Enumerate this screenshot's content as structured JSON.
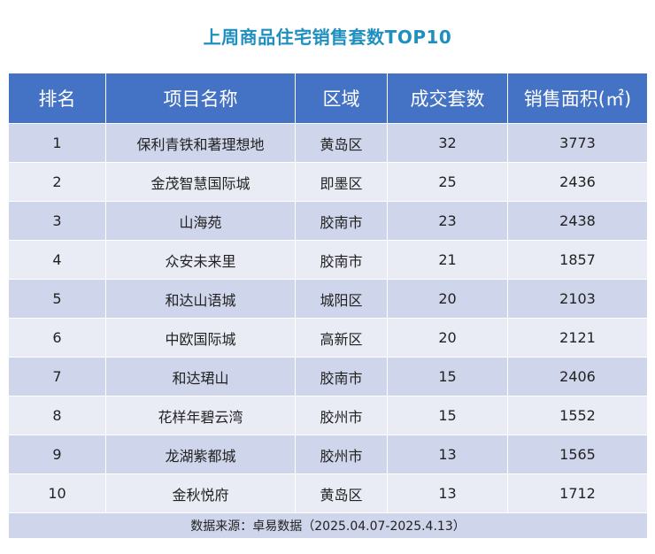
{
  "chart_data": {
    "type": "table",
    "title": "上周商品住宅销售套数TOP10",
    "columns": [
      "排名",
      "项目名称",
      "区域",
      "成交套数",
      "销售面积(㎡)"
    ],
    "rows": [
      {
        "rank": "1",
        "name": "保利青铁和著理想地",
        "district": "黄岛区",
        "units": "32",
        "area": "3773"
      },
      {
        "rank": "2",
        "name": "金茂智慧国际城",
        "district": "即墨区",
        "units": "25",
        "area": "2436"
      },
      {
        "rank": "3",
        "name": "山海苑",
        "district": "胶南市",
        "units": "23",
        "area": "2438"
      },
      {
        "rank": "4",
        "name": "众安未来里",
        "district": "胶南市",
        "units": "21",
        "area": "1857"
      },
      {
        "rank": "5",
        "name": "和达山语城",
        "district": "城阳区",
        "units": "20",
        "area": "2103"
      },
      {
        "rank": "6",
        "name": "中欧国际城",
        "district": "高新区",
        "units": "20",
        "area": "2121"
      },
      {
        "rank": "7",
        "name": "和达珺山",
        "district": "胶南市",
        "units": "15",
        "area": "2406"
      },
      {
        "rank": "8",
        "name": "花样年碧云湾",
        "district": "胶州市",
        "units": "15",
        "area": "1552"
      },
      {
        "rank": "9",
        "name": "龙湖紫都城",
        "district": "胶州市",
        "units": "13",
        "area": "1565"
      },
      {
        "rank": "10",
        "name": "金秋悦府",
        "district": "黄岛区",
        "units": "13",
        "area": "1712"
      }
    ],
    "source": "数据来源：卓易数据（2025.04.07-2025.4.13）"
  },
  "colors": {
    "title": "#1f8fbf",
    "header_bg": "#4472c4",
    "row_odd": "#cfd5ea",
    "row_even": "#e9ebf5"
  }
}
